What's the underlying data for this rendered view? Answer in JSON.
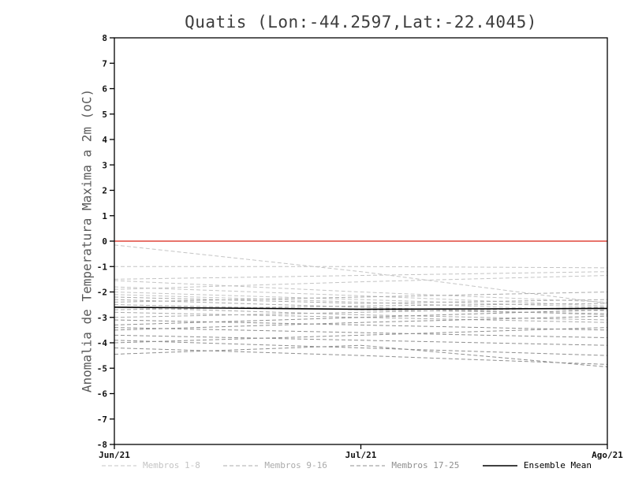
{
  "chart_data": {
    "type": "line",
    "title": "Quatis (Lon:-44.2597,Lat:-22.4045)",
    "ylabel": "Anomalia de Temperatura Maxima a 2m (oC)",
    "xlabel": "",
    "ylim": [
      -8,
      8
    ],
    "y_ticks": [
      8,
      7,
      6,
      5,
      4,
      3,
      2,
      1,
      0,
      -1,
      -2,
      -3,
      -4,
      -5,
      -6,
      -7,
      -8
    ],
    "x_tick_labels": [
      "Jun/21",
      "Jul/21",
      "Ago/21"
    ],
    "zero_line": {
      "value": 0,
      "color": "#e0473c"
    },
    "ensemble_mean": {
      "name": "Ensemble Mean",
      "color": "#000000",
      "values": [
        -2.6,
        -2.68,
        -2.65
      ]
    },
    "member_groups": [
      {
        "name": "Membros 1-8",
        "color": "#c4c4c4",
        "style": "dashed"
      },
      {
        "name": "Membros 9-16",
        "color": "#ababab",
        "style": "dashed"
      },
      {
        "name": "Membros 17-25",
        "color": "#8f8f8f",
        "style": "dashed"
      }
    ],
    "members": [
      {
        "values": [
          -0.15,
          -1.2,
          -2.45
        ]
      },
      {
        "values": [
          -1.0,
          -1.0,
          -1.05
        ]
      },
      {
        "values": [
          -1.5,
          -1.35,
          -1.2
        ]
      },
      {
        "values": [
          -1.55,
          -2.0,
          -2.4
        ]
      },
      {
        "values": [
          -1.8,
          -2.15,
          -2.55
        ]
      },
      {
        "values": [
          -1.9,
          -1.6,
          -1.35
        ]
      },
      {
        "values": [
          -2.0,
          -2.3,
          -2.6
        ]
      },
      {
        "values": [
          -2.1,
          -2.4,
          -2.75
        ]
      },
      {
        "values": [
          -2.2,
          -2.45,
          -2.3
        ]
      },
      {
        "values": [
          -2.3,
          -2.6,
          -2.9
        ]
      },
      {
        "values": [
          -2.4,
          -2.2,
          -2.0
        ]
      },
      {
        "values": [
          -2.5,
          -2.7,
          -2.85
        ]
      },
      {
        "values": [
          -2.6,
          -2.9,
          -3.1
        ]
      },
      {
        "values": [
          -2.7,
          -2.55,
          -2.45
        ]
      },
      {
        "values": [
          -2.8,
          -3.0,
          -3.2
        ]
      },
      {
        "values": [
          -3.0,
          -2.8,
          -2.6
        ]
      },
      {
        "values": [
          -3.1,
          -3.3,
          -3.5
        ]
      },
      {
        "values": [
          -3.3,
          -3.0,
          -2.7
        ]
      },
      {
        "values": [
          -3.4,
          -3.6,
          -3.8
        ]
      },
      {
        "values": [
          -3.5,
          -3.2,
          -2.95
        ]
      },
      {
        "values": [
          -3.7,
          -3.9,
          -4.1
        ]
      },
      {
        "values": [
          -3.9,
          -4.2,
          -4.5
        ]
      },
      {
        "values": [
          -4.0,
          -3.7,
          -3.4
        ]
      },
      {
        "values": [
          -4.2,
          -4.5,
          -4.85
        ]
      },
      {
        "values": [
          -4.45,
          -4.1,
          -4.95
        ]
      }
    ],
    "legend": [
      {
        "label": "Membros 1-8",
        "color": "#c4c4c4",
        "style": "dashed"
      },
      {
        "label": "Membros 9-16",
        "color": "#ababab",
        "style": "dashed"
      },
      {
        "label": "Membros 17-25",
        "color": "#8f8f8f",
        "style": "dashed"
      },
      {
        "label": "Ensemble Mean",
        "color": "#000000",
        "style": "solid"
      }
    ],
    "axis_color": "#000000",
    "grid": false,
    "legend_position": "bottom"
  }
}
